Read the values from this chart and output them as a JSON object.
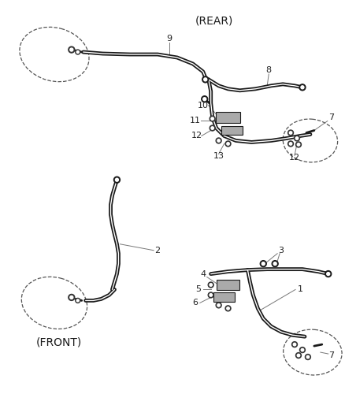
{
  "bg_color": "#ffffff",
  "line_color": "#1a1a1a",
  "leader_color": "#777777",
  "figsize": [
    4.38,
    5.33
  ],
  "dpi": 100
}
